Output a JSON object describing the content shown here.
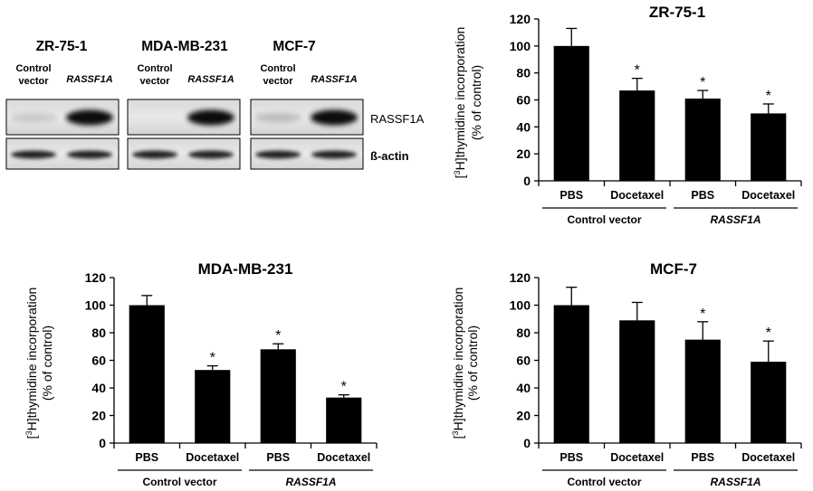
{
  "blot": {
    "cell_lines": [
      {
        "name": "ZR-75-1",
        "lanes": [
          "Control\nvector",
          "RASSF1A"
        ]
      },
      {
        "name": "MDA-MB-231",
        "lanes": [
          "Control\nvector",
          "RASSF1A"
        ]
      },
      {
        "name": "MCF-7",
        "lanes": [
          "Control\nvector",
          "RASSF1A"
        ]
      }
    ],
    "row_labels": [
      "RASSF1A",
      "ß-actin"
    ]
  },
  "chart_data": [
    {
      "type": "bar",
      "title": "ZR-75-1",
      "ylabel": "[3H]thymidine incorporation (% of control)",
      "ylabel_line1_sup": "3",
      "ylabel_line1_pre": "[",
      "ylabel_line1_post": "H]thymidine incorporation",
      "ylabel_line2": "(% of control)",
      "categories": [
        "PBS",
        "Docetaxel",
        "PBS",
        "Docetaxel"
      ],
      "groups": [
        {
          "label": "Control vector",
          "italic": false
        },
        {
          "label": "RASSF1A",
          "italic": true
        }
      ],
      "values": [
        100,
        67,
        61,
        50
      ],
      "errors": [
        13,
        9,
        6,
        7
      ],
      "significant": [
        false,
        true,
        true,
        true
      ],
      "sig_marker": "*",
      "ylim": [
        0,
        120
      ],
      "yticks": [
        0,
        20,
        40,
        60,
        80,
        100,
        120
      ],
      "bar_color": "#000000"
    },
    {
      "type": "bar",
      "title": "MDA-MB-231",
      "ylabel": "[3H]thymidine incorporation (% of control)",
      "ylabel_line1_sup": "3",
      "ylabel_line1_pre": "[",
      "ylabel_line1_post": "H]thymidine incorporation",
      "ylabel_line2": "(% of control)",
      "categories": [
        "PBS",
        "Docetaxel",
        "PBS",
        "Docetaxel"
      ],
      "groups": [
        {
          "label": "Control vector",
          "italic": false
        },
        {
          "label": "RASSF1A",
          "italic": true
        }
      ],
      "values": [
        100,
        53,
        68,
        33
      ],
      "errors": [
        7,
        3,
        4,
        2
      ],
      "significant": [
        false,
        true,
        true,
        true
      ],
      "sig_marker": "*",
      "ylim": [
        0,
        120
      ],
      "yticks": [
        0,
        20,
        40,
        60,
        80,
        100,
        120
      ],
      "bar_color": "#000000"
    },
    {
      "type": "bar",
      "title": "MCF-7",
      "ylabel": "[3H]thymidine incorporation (% of control)",
      "ylabel_line1_sup": "3",
      "ylabel_line1_pre": "[",
      "ylabel_line1_post": "H]thymidine incorporation",
      "ylabel_line2": "(% of control)",
      "categories": [
        "PBS",
        "Docetaxel",
        "PBS",
        "Docetaxel"
      ],
      "groups": [
        {
          "label": "Control vector",
          "italic": false
        },
        {
          "label": "RASSF1A",
          "italic": true
        }
      ],
      "values": [
        100,
        89,
        75,
        59
      ],
      "errors": [
        13,
        13,
        13,
        15
      ],
      "significant": [
        false,
        false,
        true,
        true
      ],
      "sig_marker": "*",
      "ylim": [
        0,
        120
      ],
      "yticks": [
        0,
        20,
        40,
        60,
        80,
        100,
        120
      ],
      "bar_color": "#000000"
    }
  ]
}
